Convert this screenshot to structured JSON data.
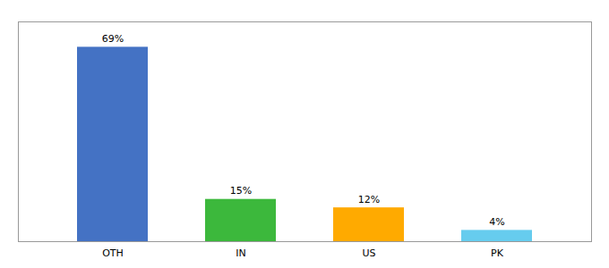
{
  "chart_data": {
    "type": "bar",
    "categories": [
      "OTH",
      "IN",
      "US",
      "PK"
    ],
    "values": [
      69,
      15,
      12,
      4
    ],
    "value_labels": [
      "69%",
      "15%",
      "12%",
      "4%"
    ],
    "colors": [
      "#4472c4",
      "#3cb83c",
      "#ffaa00",
      "#66ccee"
    ],
    "data_labels": true,
    "ylim": [
      0,
      78
    ],
    "tick_labels": "x",
    "grid": false
  }
}
